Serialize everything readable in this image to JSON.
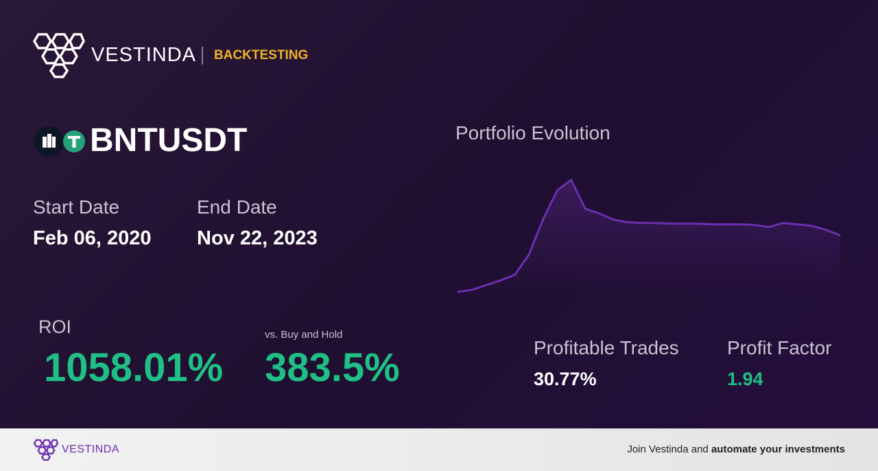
{
  "header": {
    "brand": "VESTINDA",
    "section": "BACKTESTING"
  },
  "pair": "BNTUSDT",
  "dates": {
    "start_label": "Start Date",
    "start": "Feb 06, 2020",
    "end_label": "End Date",
    "end": "Nov 22, 2023"
  },
  "returns": {
    "roi_label": "ROI",
    "roi": "1058.01%",
    "bh_label": "vs. Buy and Hold",
    "bh": "383.5%"
  },
  "stats": {
    "trades_label": "Profitable Trades",
    "trades": "30.77%",
    "factor_label": "Profit Factor",
    "factor": "1.94"
  },
  "footer": {
    "brand": "VESTINDA",
    "cta_lead": "Join Vestinda and",
    "cta_bold": "automate your investments"
  },
  "chart_data": {
    "type": "line",
    "title": "Portfolio Evolution",
    "color": "#6b2fb0",
    "values": [
      0,
      3,
      10,
      17,
      25,
      55,
      107,
      150,
      166,
      123,
      116,
      107,
      103,
      102,
      102,
      101,
      101,
      101,
      100,
      100,
      100,
      99,
      96,
      102,
      100,
      98,
      92,
      84
    ],
    "ylim": [
      0,
      170
    ]
  }
}
